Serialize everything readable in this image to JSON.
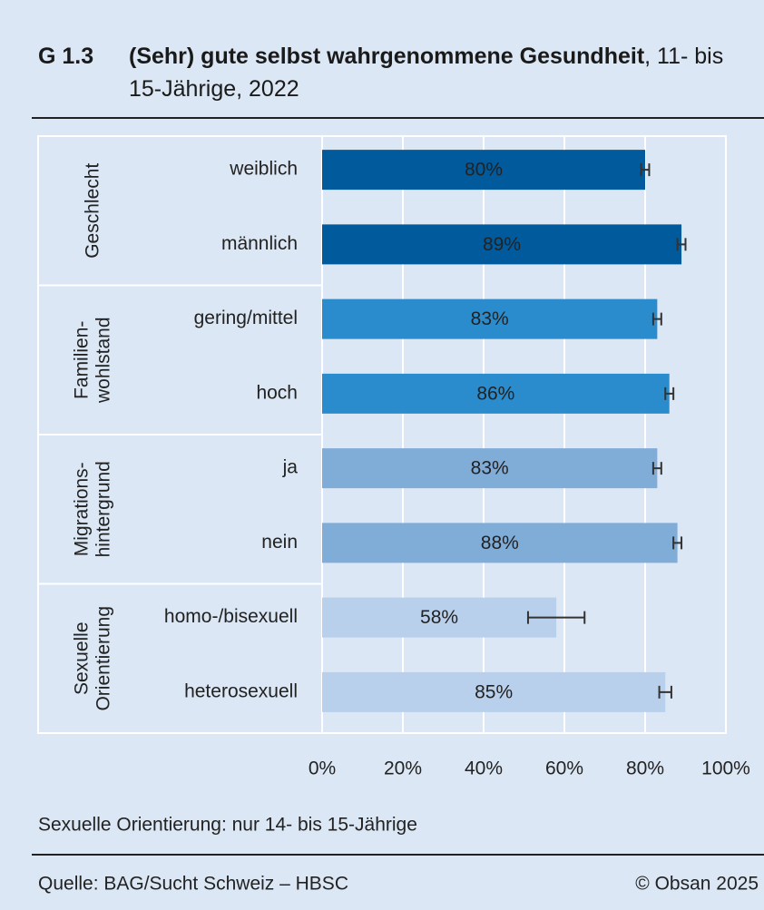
{
  "chart_data": {
    "type": "bar",
    "orientation": "horizontal",
    "title_number": "G 1.3",
    "title": "(Sehr) gute selbst wahrgenommene Gesundheit",
    "subtitle": ", 11- bis 15-Jährige, 2022",
    "groups": [
      {
        "label_lines": [
          "Geschlecht"
        ],
        "size": 2,
        "color": "#005a9c"
      },
      {
        "label_lines": [
          "Familien-",
          "wohlstand"
        ],
        "size": 2,
        "color": "#2a8ccc"
      },
      {
        "label_lines": [
          "Migrations-",
          "hintergrund"
        ],
        "size": 2,
        "color": "#80acd8"
      },
      {
        "label_lines": [
          "Sexuelle",
          "Orientierung"
        ],
        "size": 2,
        "color": "#b9d0ec"
      }
    ],
    "categories": [
      "weiblich",
      "männlich",
      "gering/mittel",
      "hoch",
      "ja",
      "nein",
      "homo-/bisexuell",
      "heterosexuell"
    ],
    "values": [
      80,
      89,
      83,
      86,
      83,
      88,
      58,
      85
    ],
    "value_labels": [
      "80%",
      "89%",
      "83%",
      "86%",
      "83%",
      "88%",
      "58%",
      "85%"
    ],
    "errors": [
      1,
      1,
      1,
      1,
      1,
      1,
      7,
      1.5
    ],
    "xlim": [
      0,
      100
    ],
    "xticks": [
      {
        "value": 0,
        "label": "0%"
      },
      {
        "value": 20,
        "label": "20%"
      },
      {
        "value": 40,
        "label": "40%"
      },
      {
        "value": 60,
        "label": "60%"
      },
      {
        "value": 80,
        "label": "80%"
      },
      {
        "value": 100,
        "label": "100%"
      }
    ],
    "grid": true,
    "note": "Sexuelle Orientierung: nur 14- bis 15-Jährige",
    "source": "Quelle: BAG/Sucht Schweiz – HBSC",
    "copyright": "© Obsan 2025"
  }
}
